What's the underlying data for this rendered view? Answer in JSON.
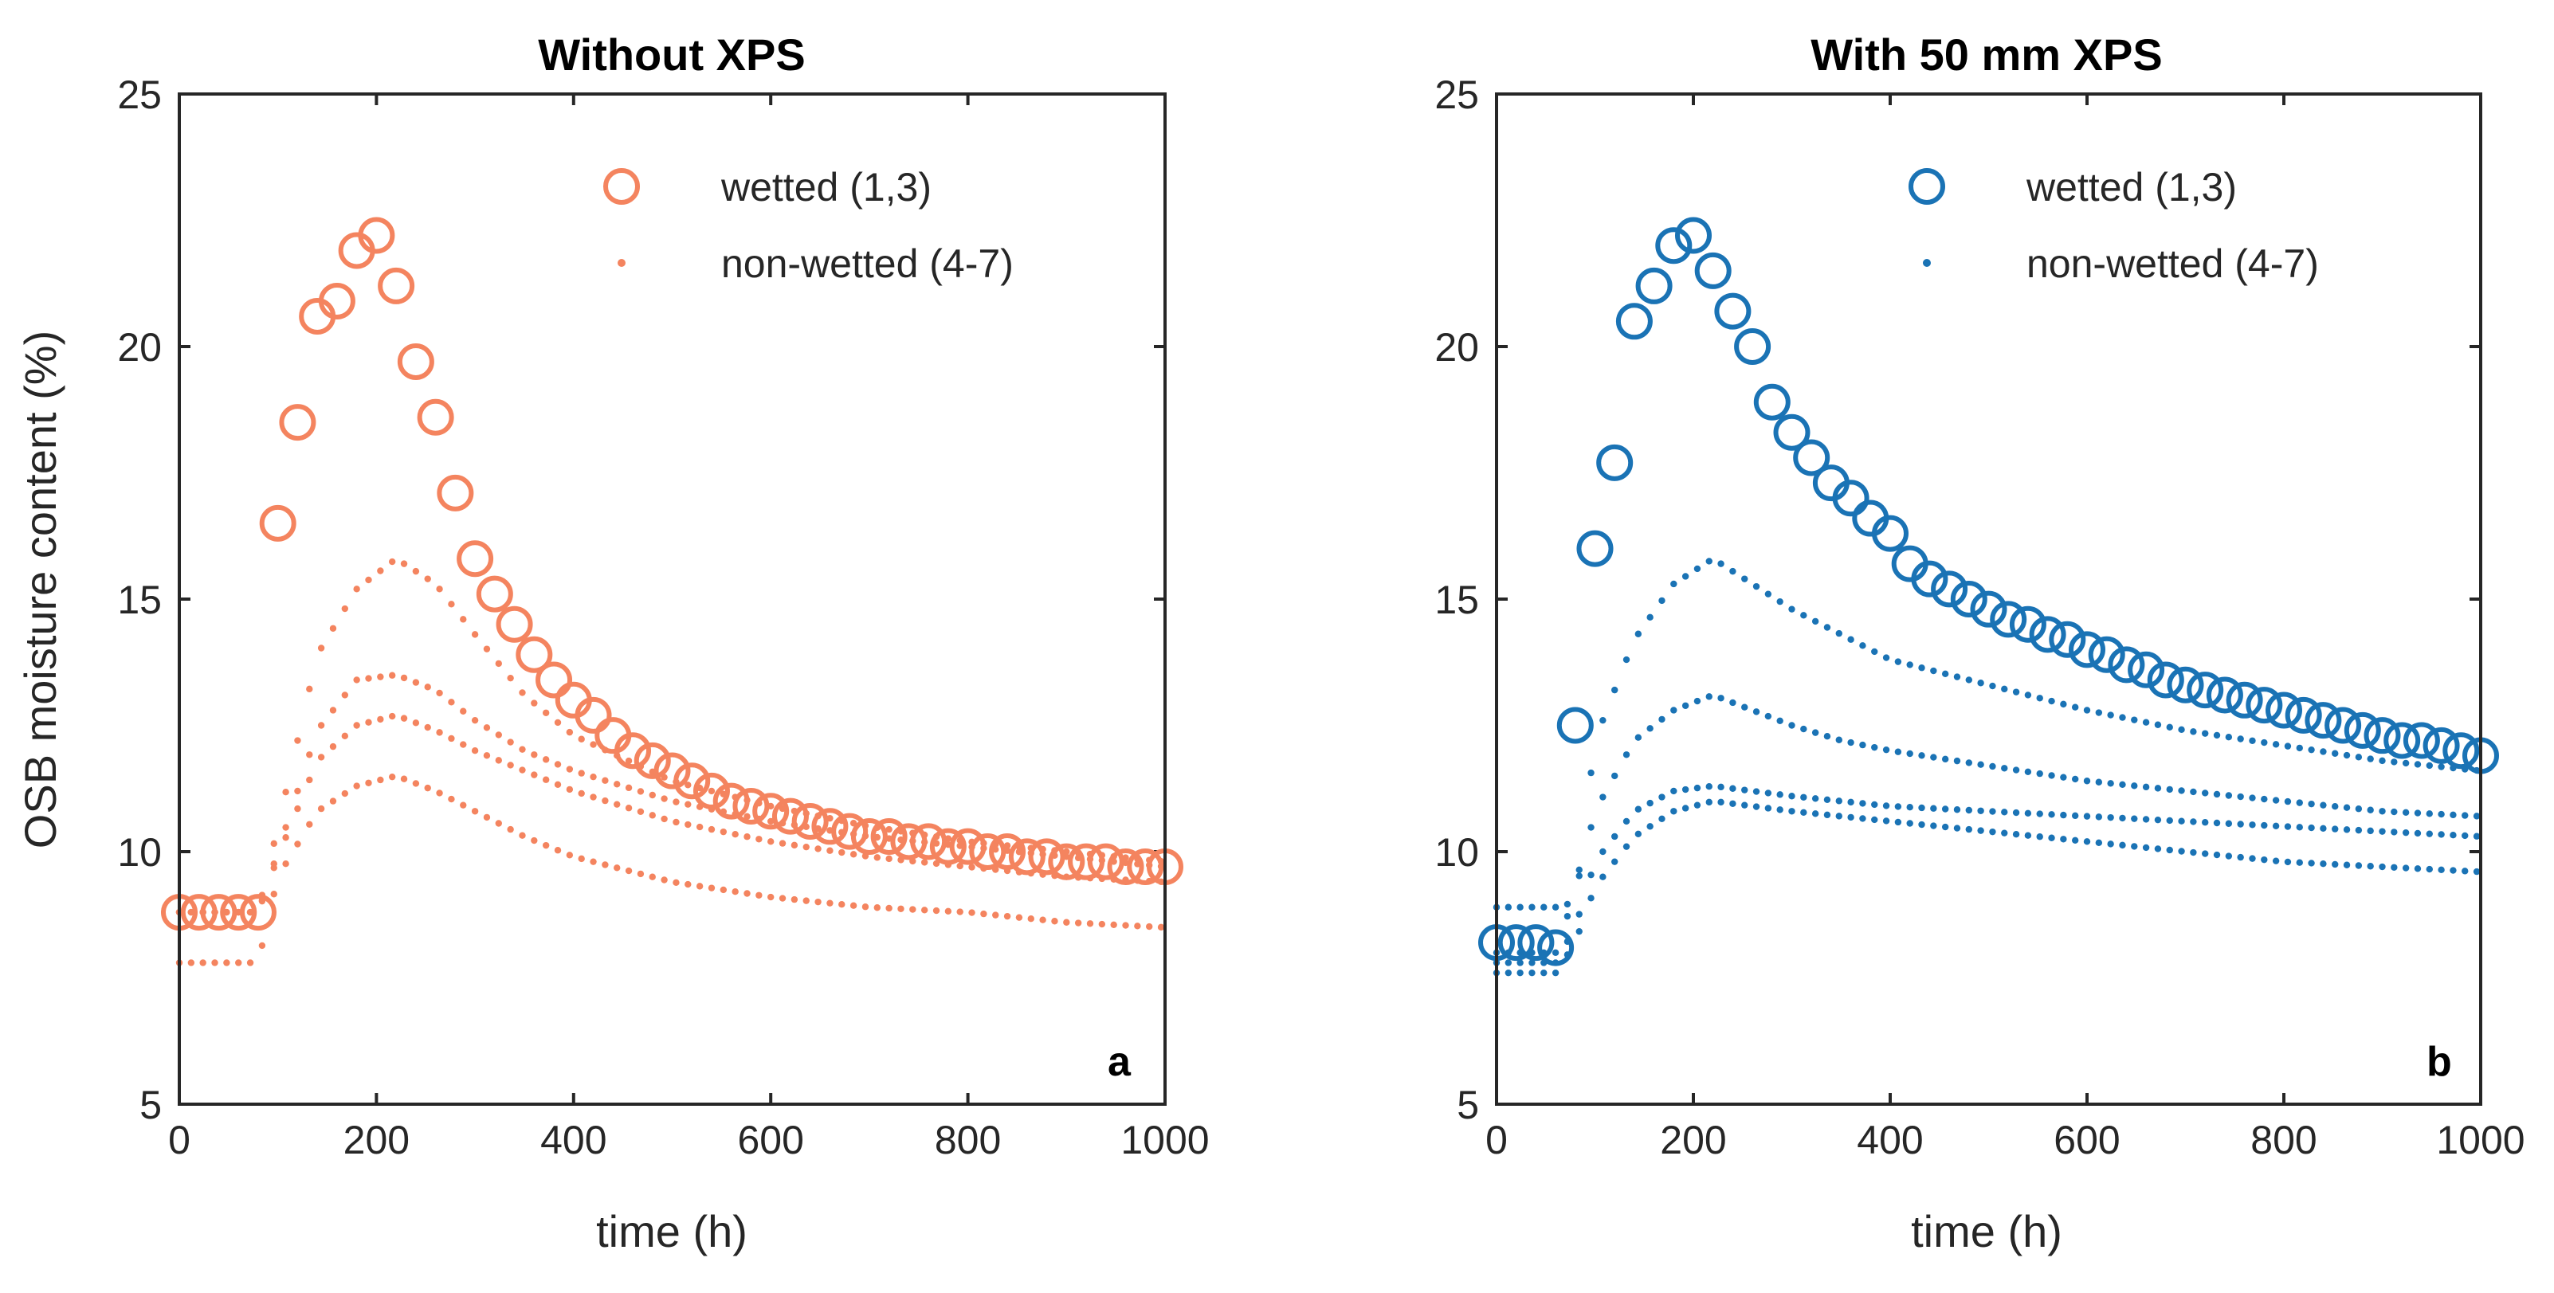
{
  "chart_data": [
    {
      "type": "scatter",
      "title": "Without XPS",
      "panel_label": "a",
      "xlabel": "time (h)",
      "ylabel": "OSB moisture content (%)",
      "xlim": [
        0,
        1000
      ],
      "ylim": [
        5,
        25
      ],
      "xticks": [
        "0",
        "200",
        "400",
        "600",
        "800",
        "1000"
      ],
      "yticks": [
        "5",
        "10",
        "15",
        "20",
        "25"
      ],
      "grid": false,
      "legend_position": "top-right",
      "color": "#F4845F",
      "legend": [
        {
          "label": "wetted (1,3)",
          "marker": "circle"
        },
        {
          "label": "non-wetted (4-7)",
          "marker": "dot"
        }
      ],
      "wetted": {
        "x": [
          0,
          20,
          40,
          60,
          80,
          100,
          120,
          140,
          160,
          180,
          200,
          220,
          240,
          260,
          280,
          300,
          320,
          340,
          360,
          380,
          400,
          420,
          440,
          460,
          480,
          500,
          520,
          540,
          560,
          580,
          600,
          620,
          640,
          660,
          680,
          700,
          720,
          740,
          760,
          780,
          800,
          820,
          840,
          860,
          880,
          900,
          920,
          940,
          960,
          980,
          1000
        ],
        "y": [
          8.8,
          8.8,
          8.8,
          8.8,
          8.8,
          16.5,
          18.5,
          20.6,
          20.9,
          21.9,
          22.2,
          21.2,
          19.7,
          18.6,
          17.1,
          15.8,
          15.1,
          14.5,
          13.9,
          13.4,
          13.0,
          12.7,
          12.3,
          12.0,
          11.8,
          11.6,
          11.4,
          11.2,
          11.0,
          10.9,
          10.8,
          10.7,
          10.6,
          10.5,
          10.4,
          10.3,
          10.3,
          10.2,
          10.2,
          10.1,
          10.1,
          10.0,
          10.0,
          9.9,
          9.9,
          9.8,
          9.8,
          9.8,
          9.7,
          9.7,
          9.7
        ]
      },
      "non_wetted": [
        {
          "x": [
            0,
            80,
            100,
            140,
            180,
            220,
            260,
            300,
            350,
            400,
            500,
            600,
            700,
            800,
            900,
            1000
          ],
          "y": [
            8.8,
            8.8,
            10.5,
            13.9,
            15.2,
            15.8,
            15.3,
            14.3,
            13.1,
            12.3,
            11.4,
            10.9,
            10.5,
            10.2,
            10.0,
            9.8
          ]
        },
        {
          "x": [
            0,
            80,
            100,
            140,
            180,
            220,
            260,
            300,
            350,
            400,
            500,
            600,
            700,
            800,
            900,
            1000
          ],
          "y": [
            8.8,
            8.8,
            10.0,
            12.4,
            13.4,
            13.5,
            13.2,
            12.6,
            12.0,
            11.6,
            11.0,
            10.6,
            10.3,
            10.1,
            9.9,
            9.7
          ]
        },
        {
          "x": [
            0,
            80,
            100,
            140,
            180,
            220,
            260,
            300,
            350,
            400,
            500,
            600,
            700,
            800,
            900,
            1000
          ],
          "y": [
            8.8,
            8.8,
            9.9,
            11.8,
            12.5,
            12.7,
            12.4,
            12.0,
            11.6,
            11.2,
            10.6,
            10.2,
            9.9,
            9.7,
            9.5,
            9.4
          ]
        },
        {
          "x": [
            0,
            80,
            100,
            140,
            180,
            220,
            260,
            300,
            350,
            400,
            500,
            600,
            700,
            800,
            900,
            1000
          ],
          "y": [
            7.8,
            7.8,
            9.5,
            10.8,
            11.3,
            11.5,
            11.2,
            10.8,
            10.3,
            9.9,
            9.4,
            9.1,
            8.9,
            8.8,
            8.6,
            8.5
          ]
        }
      ]
    },
    {
      "type": "scatter",
      "title": "With 50 mm XPS",
      "panel_label": "b",
      "xlabel": "time (h)",
      "ylabel": "",
      "xlim": [
        0,
        1000
      ],
      "ylim": [
        5,
        25
      ],
      "xticks": [
        "0",
        "200",
        "400",
        "600",
        "800",
        "1000"
      ],
      "yticks": [
        "5",
        "10",
        "15",
        "20",
        "25"
      ],
      "grid": false,
      "legend_position": "top-right",
      "color": "#1A73B5",
      "legend": [
        {
          "label": "wetted (1,3)",
          "marker": "circle"
        },
        {
          "label": "non-wetted (4-7)",
          "marker": "dot"
        }
      ],
      "wetted": {
        "x": [
          0,
          20,
          40,
          60,
          80,
          100,
          120,
          140,
          160,
          180,
          200,
          220,
          240,
          260,
          280,
          300,
          320,
          340,
          360,
          380,
          400,
          420,
          440,
          460,
          480,
          500,
          520,
          540,
          560,
          580,
          600,
          620,
          640,
          660,
          680,
          700,
          720,
          740,
          760,
          780,
          800,
          820,
          840,
          860,
          880,
          900,
          920,
          940,
          960,
          980,
          1000
        ],
        "y": [
          8.2,
          8.2,
          8.2,
          8.1,
          12.5,
          16.0,
          17.7,
          20.5,
          21.2,
          22.0,
          22.2,
          21.5,
          20.7,
          20.0,
          18.9,
          18.3,
          17.8,
          17.3,
          17.0,
          16.6,
          16.3,
          15.7,
          15.4,
          15.2,
          15.0,
          14.8,
          14.6,
          14.5,
          14.3,
          14.2,
          14.0,
          13.9,
          13.7,
          13.6,
          13.4,
          13.3,
          13.2,
          13.1,
          13.0,
          12.9,
          12.8,
          12.7,
          12.6,
          12.5,
          12.4,
          12.3,
          12.2,
          12.2,
          12.1,
          12.0,
          11.9
        ]
      },
      "non_wetted": [
        {
          "x": [
            0,
            60,
            80,
            100,
            140,
            180,
            220,
            260,
            300,
            350,
            400,
            500,
            600,
            700,
            800,
            900,
            1000
          ],
          "y": [
            8.9,
            8.9,
            9.0,
            12.2,
            14.2,
            15.3,
            15.8,
            15.3,
            14.8,
            14.3,
            13.8,
            13.3,
            12.8,
            12.4,
            12.1,
            11.8,
            11.6
          ]
        },
        {
          "x": [
            0,
            60,
            80,
            100,
            140,
            180,
            220,
            260,
            300,
            350,
            400,
            500,
            600,
            700,
            800,
            900,
            1000
          ],
          "y": [
            8.0,
            8.0,
            9.2,
            10.8,
            12.2,
            12.8,
            13.1,
            12.8,
            12.5,
            12.2,
            12.0,
            11.7,
            11.4,
            11.2,
            11.0,
            10.8,
            10.7
          ]
        },
        {
          "x": [
            0,
            60,
            80,
            100,
            140,
            180,
            220,
            260,
            300,
            350,
            400,
            500,
            600,
            700,
            800,
            900,
            1000
          ],
          "y": [
            7.8,
            7.8,
            8.5,
            9.8,
            10.8,
            11.2,
            11.3,
            11.2,
            11.1,
            11.0,
            10.9,
            10.8,
            10.7,
            10.6,
            10.5,
            10.4,
            10.3
          ]
        },
        {
          "x": [
            0,
            60,
            80,
            100,
            140,
            180,
            220,
            260,
            300,
            350,
            400,
            500,
            600,
            700,
            800,
            900,
            1000
          ],
          "y": [
            7.6,
            7.6,
            8.2,
            9.3,
            10.3,
            10.8,
            11.0,
            10.9,
            10.8,
            10.7,
            10.6,
            10.4,
            10.2,
            10.0,
            9.8,
            9.7,
            9.6
          ]
        }
      ]
    }
  ]
}
